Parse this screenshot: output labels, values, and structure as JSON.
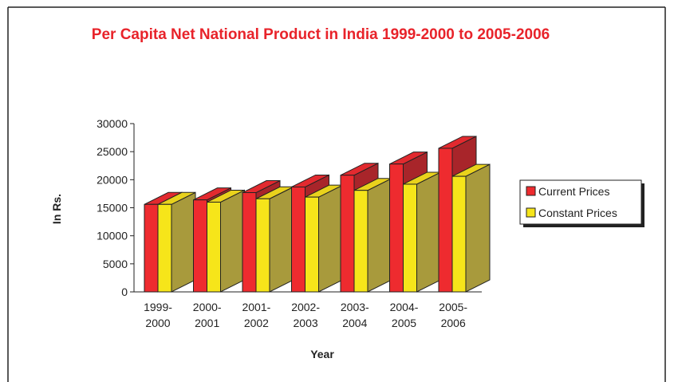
{
  "chart_data": {
    "type": "bar",
    "title": "Per Capita Net National Product in India 1999-2000 to 2005-2006",
    "xlabel": "Year",
    "ylabel": "In Rs.",
    "ylim": [
      0,
      30000
    ],
    "yticks": [
      "30000",
      "25000",
      "20000",
      "15000",
      "10000",
      "5000",
      "0"
    ],
    "categories": [
      [
        "1999-",
        "2000"
      ],
      [
        "2000-",
        "2001"
      ],
      [
        "2001-",
        "2002"
      ],
      [
        "2002-",
        "2003"
      ],
      [
        "2003-",
        "2004"
      ],
      [
        "2004-",
        "2005"
      ],
      [
        "2005-",
        "2006"
      ]
    ],
    "series": [
      {
        "name": "Current Prices",
        "values": [
          15600,
          16400,
          17700,
          18700,
          20800,
          22800,
          25600
        ],
        "color": "#ee2b2f",
        "side_color": "#a8252a",
        "top_color": "#e22a2f"
      },
      {
        "name": "Constant Prices",
        "values": [
          15600,
          16000,
          16600,
          16900,
          18100,
          19200,
          20600
        ],
        "color": "#f6e51a",
        "side_color": "#a89a3c",
        "top_color": "#e9d21c"
      }
    ],
    "legend_position": "right",
    "grid": false
  }
}
